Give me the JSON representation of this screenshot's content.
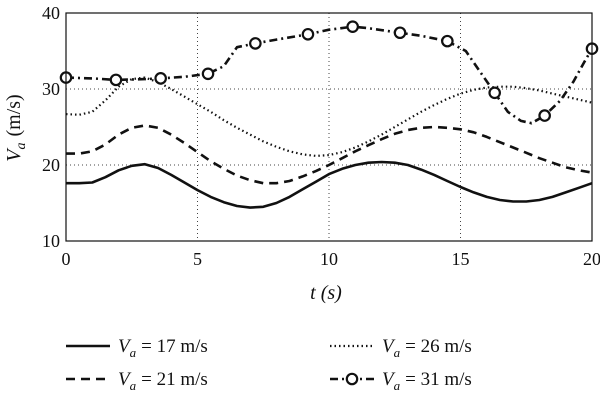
{
  "chart_data": {
    "type": "line",
    "title": "",
    "xlabel": "t (s)",
    "ylabel": "Va (m/s)",
    "xlim": [
      0,
      20
    ],
    "ylim": [
      10,
      40
    ],
    "xticks": [
      0,
      5,
      10,
      15,
      20
    ],
    "yticks": [
      10,
      20,
      30,
      40
    ],
    "grid": "dotted",
    "legend_placement": "below",
    "series": [
      {
        "name": "Va = 17 m/s",
        "style": "solid",
        "color": "#111111",
        "x": [
          0,
          0.5,
          1,
          1.5,
          2,
          2.5,
          3,
          3.5,
          4,
          4.5,
          5,
          5.5,
          6,
          6.5,
          7,
          7.5,
          8,
          8.5,
          9,
          9.5,
          10,
          10.5,
          11,
          11.5,
          12,
          12.5,
          13,
          13.5,
          14,
          14.5,
          15,
          15.5,
          16,
          16.5,
          17,
          17.5,
          18,
          18.5,
          19,
          19.5,
          20
        ],
        "y": [
          17.6,
          17.6,
          17.7,
          18.4,
          19.3,
          19.9,
          20.1,
          19.6,
          18.7,
          17.7,
          16.7,
          15.8,
          15.1,
          14.6,
          14.4,
          14.5,
          15.0,
          15.8,
          16.8,
          17.8,
          18.8,
          19.5,
          20.0,
          20.3,
          20.4,
          20.3,
          20.0,
          19.4,
          18.7,
          17.9,
          17.1,
          16.4,
          15.8,
          15.4,
          15.2,
          15.2,
          15.4,
          15.8,
          16.4,
          17.0,
          17.6
        ]
      },
      {
        "name": "Va = 21 m/s",
        "style": "dashed",
        "color": "#111111",
        "x": [
          0,
          0.5,
          1,
          1.5,
          2,
          2.5,
          3,
          3.5,
          4,
          4.5,
          5,
          5.5,
          6,
          6.5,
          7,
          7.5,
          8,
          8.5,
          9,
          9.5,
          10,
          10.5,
          11,
          11.5,
          12,
          12.5,
          13,
          13.5,
          14,
          14.5,
          15,
          15.5,
          16,
          16.5,
          17,
          17.5,
          18,
          18.5,
          19,
          19.5,
          20
        ],
        "y": [
          21.5,
          21.5,
          21.8,
          22.7,
          24.0,
          24.9,
          25.2,
          24.9,
          24.0,
          22.9,
          21.7,
          20.5,
          19.5,
          18.6,
          18.0,
          17.6,
          17.6,
          17.9,
          18.5,
          19.2,
          20.0,
          20.9,
          21.8,
          22.6,
          23.4,
          24.1,
          24.6,
          24.9,
          25.0,
          24.9,
          24.7,
          24.3,
          23.7,
          23.0,
          22.3,
          21.6,
          20.9,
          20.3,
          19.7,
          19.3,
          19.0
        ]
      },
      {
        "name": "Va = 26 m/s",
        "style": "dotted",
        "color": "#111111",
        "x": [
          0,
          0.5,
          1,
          1.5,
          2,
          2.5,
          3,
          3.5,
          4,
          4.5,
          5,
          5.5,
          6,
          6.5,
          7,
          7.5,
          8,
          8.5,
          9,
          9.5,
          10,
          10.5,
          11,
          11.5,
          12,
          12.5,
          13,
          13.5,
          14,
          14.5,
          15,
          15.5,
          16,
          16.5,
          17,
          17.5,
          18,
          18.5,
          19,
          19.5,
          20
        ],
        "y": [
          26.7,
          26.6,
          27.0,
          28.5,
          30.3,
          31.3,
          31.5,
          30.9,
          30.0,
          29.0,
          28.0,
          27.0,
          25.9,
          24.9,
          24.0,
          23.1,
          22.4,
          21.8,
          21.4,
          21.2,
          21.3,
          21.7,
          22.3,
          23.1,
          24.0,
          25.0,
          26.0,
          27.0,
          27.9,
          28.7,
          29.4,
          29.9,
          30.2,
          30.3,
          30.3,
          30.1,
          29.8,
          29.4,
          29.0,
          28.6,
          28.2
        ]
      },
      {
        "name": "Va = 31 m/s",
        "style": "dash-dot-circle",
        "color": "#111111",
        "x": [
          0,
          1,
          1.9,
          3,
          3.6,
          4.5,
          5.4,
          6,
          6.5,
          7.2,
          8,
          9.2,
          10,
          10.9,
          11.5,
          12.7,
          13.5,
          14.5,
          15.2,
          15.8,
          16.3,
          16.8,
          17.3,
          17.7,
          18.2,
          18.8,
          19.3,
          19.7,
          20
        ],
        "y": [
          31.5,
          31.4,
          31.2,
          31.3,
          31.4,
          31.6,
          32.0,
          33.0,
          35.5,
          36.0,
          36.5,
          37.2,
          37.8,
          38.2,
          38.0,
          37.4,
          37.0,
          36.3,
          35.0,
          32.0,
          29.5,
          27.0,
          25.8,
          25.5,
          26.5,
          28.5,
          31.0,
          33.5,
          35.3
        ],
        "markers_x": [
          0,
          1.9,
          3.6,
          5.4,
          7.2,
          9.2,
          10.9,
          12.7,
          14.5,
          16.3,
          18.2,
          20
        ],
        "markers_y": [
          31.5,
          31.2,
          31.4,
          32.0,
          36.0,
          37.2,
          38.2,
          37.4,
          36.3,
          29.5,
          26.5,
          35.3
        ]
      }
    ]
  },
  "axes": {
    "x_label_var": "t",
    "x_label_unit": "(s)",
    "y_label_var": "V",
    "y_label_sub": "a",
    "y_label_unit": "(m/s)"
  },
  "legend": [
    {
      "var": "V",
      "sub": "a",
      "text": "= 17 m/s"
    },
    {
      "var": "V",
      "sub": "a",
      "text": "= 26 m/s"
    },
    {
      "var": "V",
      "sub": "a",
      "text": "= 21 m/s"
    },
    {
      "var": "V",
      "sub": "a",
      "text": "= 31 m/s"
    }
  ]
}
